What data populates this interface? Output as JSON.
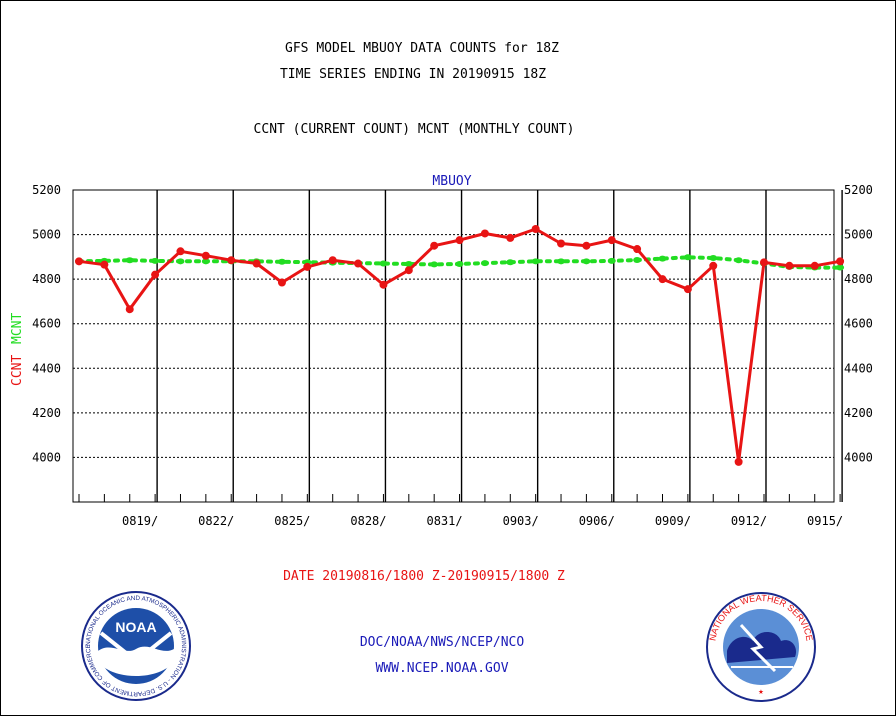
{
  "titles": {
    "line1": "GFS MODEL MBUOY DATA COUNTS for 18Z",
    "line2": "TIME SERIES ENDING IN 20190915 18Z",
    "line3": "CCNT (CURRENT COUNT) MCNT (MONTHLY COUNT)"
  },
  "chart_data": {
    "type": "line",
    "title": "MBUOY",
    "xlabel": "DATE 20190816/1800 Z-20190915/1800 Z",
    "ylabel_ccnt": "CCNT",
    "ylabel_mcnt": "MCNT",
    "ylim": [
      3800,
      5200
    ],
    "y_ticks": [
      4000,
      4200,
      4400,
      4600,
      4800,
      5000,
      5200
    ],
    "x_tick_labels": [
      "0819/",
      "0822/",
      "0825/",
      "0828/",
      "0831/",
      "0903/",
      "0906/",
      "0909/",
      "0912/",
      "0915/"
    ],
    "x": [
      "0816",
      "0817",
      "0818",
      "0819",
      "0820",
      "0821",
      "0822",
      "0823",
      "0824",
      "0825",
      "0826",
      "0827",
      "0828",
      "0829",
      "0830",
      "0831",
      "0901",
      "0902",
      "0903",
      "0904",
      "0905",
      "0906",
      "0907",
      "0908",
      "0909",
      "0910",
      "0911",
      "0912",
      "0913",
      "0914",
      "0915"
    ],
    "grid": true,
    "series": [
      {
        "name": "CCNT",
        "color": "#e81414",
        "style": "solid",
        "values": [
          4880,
          4865,
          4665,
          4820,
          4925,
          4905,
          4885,
          4870,
          4785,
          4855,
          4885,
          4870,
          4775,
          4840,
          4950,
          4975,
          5005,
          4985,
          5025,
          4960,
          4950,
          4975,
          4935,
          4800,
          4755,
          4860,
          3980,
          4875,
          4860,
          4860,
          4880
        ]
      },
      {
        "name": "MCNT",
        "color": "#22dd22",
        "style": "dotted",
        "values": [
          4880,
          4882,
          4885,
          4882,
          4880,
          4880,
          4880,
          4880,
          4878,
          4876,
          4874,
          4872,
          4870,
          4868,
          4866,
          4868,
          4872,
          4876,
          4880,
          4880,
          4880,
          4882,
          4886,
          4892,
          4898,
          4895,
          4885,
          4870,
          4855,
          4852,
          4852
        ]
      }
    ]
  },
  "footer": {
    "org_line": "DOC/NOAA/NWS/NCEP/NCO",
    "url_line": "WWW.NCEP.NOAA.GOV"
  },
  "logos": {
    "noaa_icon": "noaa-logo",
    "noaa_text": "NOAA",
    "noaa_ring_text": "NATIONAL OCEANIC AND ATMOSPHERIC ADMINISTRATION - U.S. DEPARTMENT OF COMMERCE",
    "nws_icon": "nws-logo",
    "nws_ring_text": "NATIONAL WEATHER SERVICE"
  }
}
